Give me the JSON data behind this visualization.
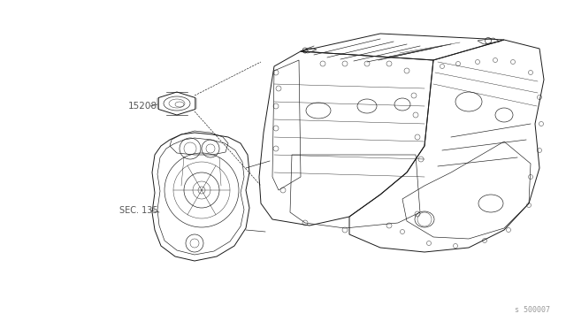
{
  "background_color": "#ffffff",
  "line_color": "#1a1a1a",
  "label_color": "#555555",
  "watermark_color": "#999999",
  "watermark_text": "s 500007",
  "label_15208": "15208",
  "label_sec135": "SEC. 135",
  "fig_width": 6.4,
  "fig_height": 3.72,
  "dpi": 100,
  "lw_main": 0.7,
  "lw_detail": 0.45,
  "lw_fine": 0.3
}
